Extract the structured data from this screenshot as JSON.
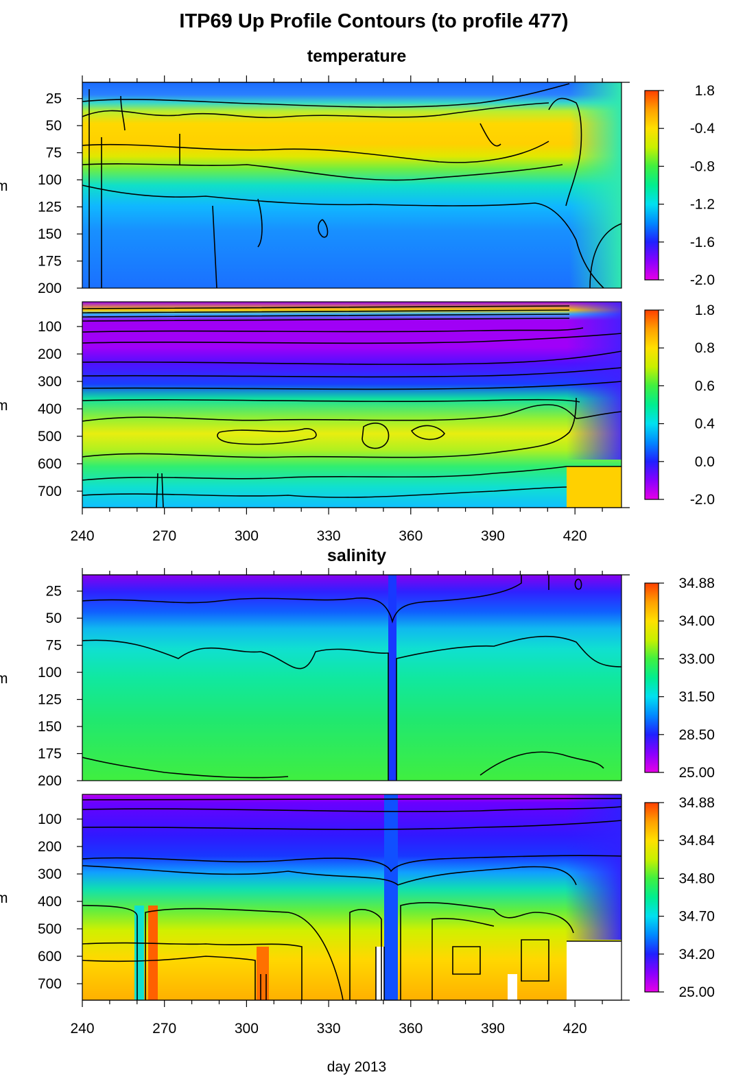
{
  "chart_data": {
    "type": "heatmap",
    "title": "ITP69 Up Profile Contours (to profile 477)",
    "xlabel": "day 2013",
    "xlim": [
      240,
      437
    ],
    "x_ticks": [
      "240",
      "270",
      "300",
      "330",
      "360",
      "390",
      "420"
    ],
    "ylabel": "m",
    "colormap": [
      "#e600e6",
      "#8800ff",
      "#2020ff",
      "#0088ff",
      "#00e0f0",
      "#00ee90",
      "#40f040",
      "#c8f000",
      "#ffe000",
      "#ffa000",
      "#ff4000"
    ],
    "sections": [
      {
        "name": "temperature",
        "panels": [
          {
            "variable": "temperature",
            "depth_range": [
              10,
              200
            ],
            "y_ticks": [
              "25",
              "50",
              "75",
              "100",
              "125",
              "150",
              "175",
              "200"
            ],
            "colorbar_labels": [
              "1.8",
              "-0.4",
              "-0.8",
              "-1.2",
              "-1.6",
              "-2.0"
            ]
          },
          {
            "variable": "temperature",
            "depth_range": [
              10,
              760
            ],
            "y_ticks": [
              "100",
              "200",
              "300",
              "400",
              "500",
              "600",
              "700"
            ],
            "colorbar_labels": [
              "1.8",
              "0.8",
              "0.6",
              "0.4",
              "0.0",
              "-2.0"
            ]
          }
        ]
      },
      {
        "name": "salinity",
        "panels": [
          {
            "variable": "salinity",
            "depth_range": [
              10,
              200
            ],
            "y_ticks": [
              "25",
              "50",
              "75",
              "100",
              "125",
              "150",
              "175",
              "200"
            ],
            "colorbar_labels": [
              "34.88",
              "34.00",
              "33.00",
              "31.50",
              "28.50",
              "25.00"
            ]
          },
          {
            "variable": "salinity",
            "depth_range": [
              10,
              760
            ],
            "y_ticks": [
              "100",
              "200",
              "300",
              "400",
              "500",
              "600",
              "700"
            ],
            "colorbar_labels": [
              "34.88",
              "34.84",
              "34.80",
              "34.70",
              "34.20",
              "25.00"
            ]
          }
        ]
      }
    ]
  }
}
